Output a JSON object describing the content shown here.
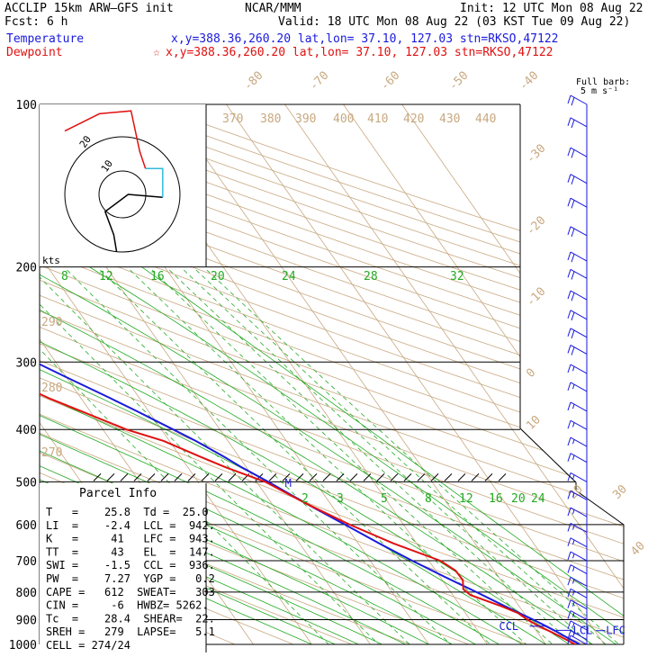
{
  "header": {
    "model": "ACCLIP  15km  ARW–GFS init",
    "forecast": "Fcst:    6 h",
    "source": "NCAR/MMM",
    "init": "Init: 12 UTC Mon 08 Aug 22",
    "valid": "Valid: 18 UTC Mon 08 Aug 22 (03 KST Tue 09 Aug 22)",
    "temperature_label": "Temperature",
    "temperature_loc": "x,y=388.36,260.20    lat,lon= 37.10, 127.03   stn=RKSO,47122",
    "dewpoint_label": "Dewpoint",
    "dewpoint_star": "☆",
    "dewpoint_loc": "x,y=388.36,260.20    lat,lon= 37.10, 127.03   stn=RKSO,47122",
    "barb_label_1": "Full barb:",
    "barb_label_2": "5 m s⁻¹"
  },
  "colors": {
    "temperature": "#1a1adc",
    "dewpoint": "#e01010",
    "isotherm": "#c8a880",
    "mixing_ratio": "#22aa22",
    "hodograph_lower": "#000000",
    "hodograph_mid": "#33bbdd",
    "hodograph_upper": "#e01010"
  },
  "chart_data": {
    "type": "line",
    "chart_kind": "Skew-T log-P sounding",
    "y_axis": {
      "scale": "log",
      "ticks": [
        "100",
        "200",
        "300",
        "400",
        "500",
        "600",
        "700",
        "800",
        "900",
        "1000"
      ],
      "range": [
        1000,
        100
      ]
    },
    "isotherm_labels": [
      "-80",
      "-70",
      "-60",
      "-50",
      "-40",
      "-30",
      "-20",
      "-10",
      "0",
      "10",
      "20",
      "30",
      "40"
    ],
    "theta_labels": [
      "370",
      "380",
      "390",
      "400",
      "410",
      "420",
      "430",
      "440",
      "290",
      "280",
      "270"
    ],
    "mixing_ratio_labels_upper": [
      "8",
      "12",
      "16",
      "20",
      "24",
      "28",
      "32"
    ],
    "mixing_ratio_labels_lower": [
      "2",
      "3",
      "5",
      "8",
      "12",
      "16",
      "20",
      "24"
    ],
    "series": [
      {
        "name": "Temperature",
        "values": [
          [
            1000,
            25.8
          ],
          [
            975,
            24.6
          ],
          [
            950,
            23.5
          ],
          [
            925,
            22.2
          ],
          [
            900,
            20.8
          ],
          [
            875,
            19.2
          ],
          [
            850,
            17.6
          ],
          [
            800,
            14.4
          ],
          [
            750,
            10.8
          ],
          [
            700,
            7.2
          ],
          [
            650,
            3.6
          ],
          [
            600,
            0.0
          ],
          [
            550,
            -4.0
          ],
          [
            500,
            -8.0
          ],
          [
            470,
            -10.8
          ],
          [
            450,
            -12.5
          ],
          [
            420,
            -15.5
          ],
          [
            400,
            -18.0
          ],
          [
            370,
            -22.0
          ],
          [
            350,
            -25.0
          ],
          [
            320,
            -30.0
          ],
          [
            300,
            -33.5
          ],
          [
            280,
            -37.5
          ],
          [
            260,
            -42.0
          ],
          [
            240,
            -47.0
          ],
          [
            220,
            -52.0
          ],
          [
            200,
            -57.0
          ],
          [
            180,
            -62.0
          ],
          [
            160,
            -68.0
          ],
          [
            150,
            -71.0
          ],
          [
            147,
            -72.5
          ],
          [
            140,
            -74.0
          ],
          [
            130,
            -74.5
          ],
          [
            120,
            -72.5
          ],
          [
            110,
            -70.0
          ],
          [
            100,
            -69.0
          ]
        ]
      },
      {
        "name": "Dewpoint",
        "values": [
          [
            1000,
            25.0
          ],
          [
            975,
            23.8
          ],
          [
            950,
            22.5
          ],
          [
            925,
            21.0
          ],
          [
            900,
            19.8
          ],
          [
            875,
            19.0
          ],
          [
            850,
            17.0
          ],
          [
            810,
            13.0
          ],
          [
            790,
            12.5
          ],
          [
            760,
            13.5
          ],
          [
            730,
            13.4
          ],
          [
            700,
            12.0
          ],
          [
            650,
            6.0
          ],
          [
            600,
            0.8
          ],
          [
            550,
            -4.0
          ],
          [
            500,
            -8.5
          ],
          [
            470,
            -13.5
          ],
          [
            450,
            -16.5
          ],
          [
            420,
            -21.0
          ],
          [
            400,
            -26.0
          ],
          [
            370,
            -31.5
          ],
          [
            350,
            -35.5
          ],
          [
            330,
            -39.0
          ],
          [
            300,
            -43.0
          ],
          [
            280,
            -48.0
          ],
          [
            260,
            -54.0
          ],
          [
            240,
            -59.0
          ],
          [
            220,
            -62.0
          ],
          [
            200,
            -66.0
          ],
          [
            180,
            -72.0
          ],
          [
            160,
            -78.0
          ],
          [
            140,
            -85.0
          ],
          [
            125,
            -90.0
          ],
          [
            115,
            -92.0
          ],
          [
            105,
            -90.0
          ],
          [
            100,
            -87.0
          ]
        ]
      }
    ],
    "markers": [
      {
        "label": "EL",
        "p": 147
      },
      {
        "label": "LCL",
        "p": 942
      },
      {
        "label": "LFC",
        "p": 943
      },
      {
        "label": "CCL",
        "p": 936
      },
      {
        "label": "M",
        "p": 505
      }
    ],
    "wind_barbs": [
      {
        "p": 100,
        "kt": 20
      },
      {
        "p": 110,
        "kt": 20
      },
      {
        "p": 125,
        "kt": 20
      },
      {
        "p": 140,
        "kt": 20
      },
      {
        "p": 155,
        "kt": 20
      },
      {
        "p": 175,
        "kt": 20
      },
      {
        "p": 195,
        "kt": 20
      },
      {
        "p": 210,
        "kt": 20
      },
      {
        "p": 230,
        "kt": 20
      },
      {
        "p": 250,
        "kt": 20
      },
      {
        "p": 270,
        "kt": 20
      },
      {
        "p": 290,
        "kt": 20
      },
      {
        "p": 315,
        "kt": 15
      },
      {
        "p": 340,
        "kt": 15
      },
      {
        "p": 370,
        "kt": 15
      },
      {
        "p": 400,
        "kt": 15
      },
      {
        "p": 430,
        "kt": 15
      },
      {
        "p": 460,
        "kt": 15
      },
      {
        "p": 500,
        "kt": 15
      },
      {
        "p": 540,
        "kt": 15
      },
      {
        "p": 580,
        "kt": 15
      },
      {
        "p": 620,
        "kt": 15
      },
      {
        "p": 660,
        "kt": 15
      },
      {
        "p": 700,
        "kt": 15
      },
      {
        "p": 740,
        "kt": 15
      },
      {
        "p": 780,
        "kt": 15
      },
      {
        "p": 820,
        "kt": 15
      },
      {
        "p": 860,
        "kt": 15
      },
      {
        "p": 900,
        "kt": 15
      },
      {
        "p": 940,
        "kt": 15
      },
      {
        "p": 980,
        "kt": 15
      },
      {
        "p": 1000,
        "kt": 10
      }
    ],
    "hodograph": {
      "ring_labels": [
        "10",
        "20"
      ],
      "units_label": "kts",
      "segments": [
        {
          "color": "#000000",
          "points": [
            [
              -2,
              -20
            ],
            [
              -3,
              -14
            ],
            [
              -6,
              -6
            ],
            [
              2,
              0
            ],
            [
              14,
              -1
            ]
          ]
        },
        {
          "color": "#33bbdd",
          "points": [
            [
              14,
              -1
            ],
            [
              14,
              9
            ],
            [
              8,
              9
            ]
          ]
        },
        {
          "color": "#e01010",
          "points": [
            [
              8,
              9
            ],
            [
              6,
              15
            ],
            [
              3,
              29
            ],
            [
              -8,
              28
            ],
            [
              -20,
              22
            ]
          ]
        }
      ]
    }
  },
  "parcel_info": {
    "title": "Parcel Info",
    "rows": [
      "T   =    25.8  Td =  25.0",
      "LI  =    -2.4  LCL =  942.",
      "K   =     41   LFC =  943.",
      "TT  =     43   EL  =  147.",
      "SWI =    -1.5  CCL =  936.",
      "PW  =    7.27  YGP =   0.2",
      "CAPE =   612  SWEAT=   303",
      "CIN =     -6  HWBZ= 5262.",
      "Tc  =    28.4  SHEAR=  22.",
      "SREH =   279  LAPSE=   5.1",
      "CELL = 274/24"
    ]
  }
}
